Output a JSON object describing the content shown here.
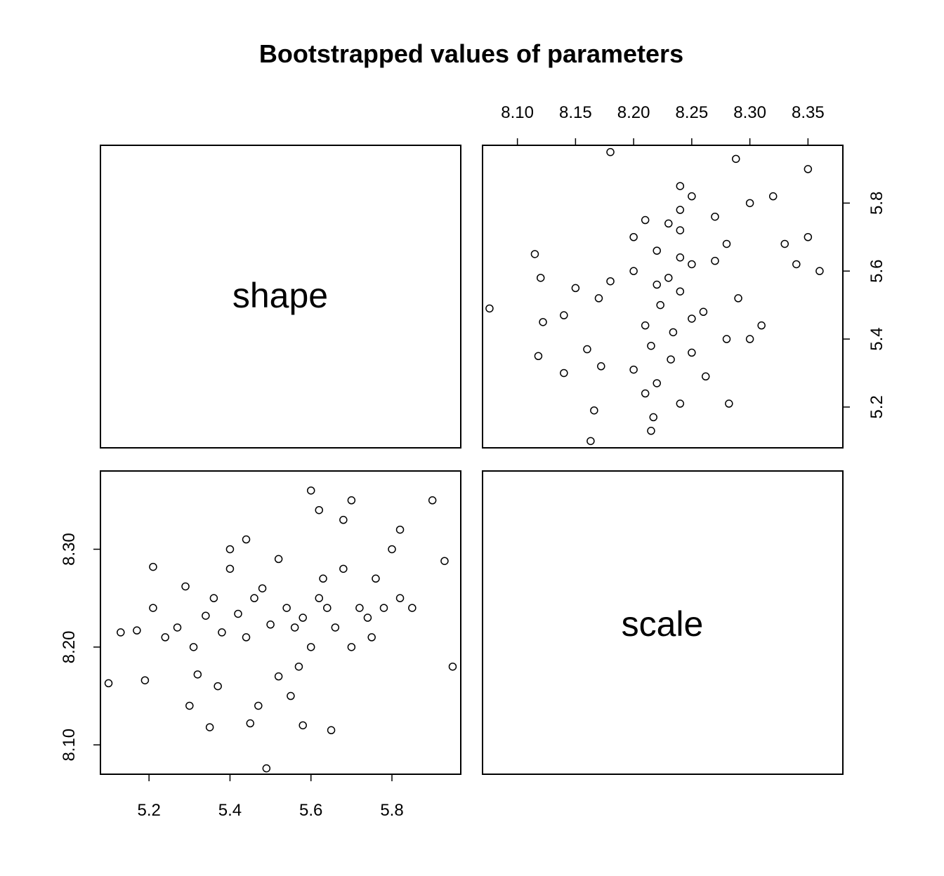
{
  "chart_data": {
    "type": "scatter",
    "title": "Bootstrapped values of parameters",
    "variables": [
      "shape",
      "scale"
    ],
    "shape_ticks": [
      "5.2",
      "5.4",
      "5.6",
      "5.8"
    ],
    "scale_ticks": [
      "8.10",
      "8.15",
      "8.20",
      "8.25",
      "8.30",
      "8.35"
    ],
    "left_axis_ticks": [
      "8.10",
      "8.20",
      "8.30"
    ],
    "shape_range": [
      5.08,
      5.97
    ],
    "scale_range": [
      8.07,
      8.38
    ],
    "grid": false,
    "series": [
      {
        "x": [
          5.1,
          5.13,
          5.17,
          5.19,
          5.21,
          5.24,
          5.27,
          5.29,
          5.31,
          5.32,
          5.34,
          5.36,
          5.38,
          5.4,
          5.42,
          5.44,
          5.46,
          5.48,
          5.5,
          5.52,
          5.54,
          5.56,
          5.58,
          5.6,
          5.62,
          5.64,
          5.66,
          5.68,
          5.7,
          5.72,
          5.74,
          5.76,
          5.78,
          5.8,
          5.82,
          5.85,
          5.9,
          5.93,
          5.95,
          5.49,
          5.21,
          5.3,
          5.35,
          5.45,
          5.55,
          5.65,
          5.75,
          5.6,
          5.62,
          5.58,
          5.68,
          5.82,
          5.44,
          5.52,
          5.4,
          5.47,
          5.57,
          5.63,
          5.37,
          5.7
        ],
        "y": [
          8.163,
          8.215,
          8.217,
          8.166,
          8.282,
          8.21,
          8.22,
          8.262,
          8.2,
          8.172,
          8.232,
          8.25,
          8.215,
          8.3,
          8.234,
          8.21,
          8.25,
          8.26,
          8.223,
          8.29,
          8.24,
          8.22,
          8.23,
          8.2,
          8.25,
          8.24,
          8.22,
          8.28,
          8.2,
          8.24,
          8.23,
          8.27,
          8.24,
          8.3,
          8.25,
          8.24,
          8.35,
          8.288,
          8.18,
          8.076,
          8.24,
          8.14,
          8.118,
          8.122,
          8.15,
          8.115,
          8.21,
          8.36,
          8.34,
          8.12,
          8.33,
          8.32,
          8.31,
          8.17,
          8.28,
          8.14,
          8.18,
          8.27,
          8.16,
          8.35
        ]
      }
    ]
  }
}
